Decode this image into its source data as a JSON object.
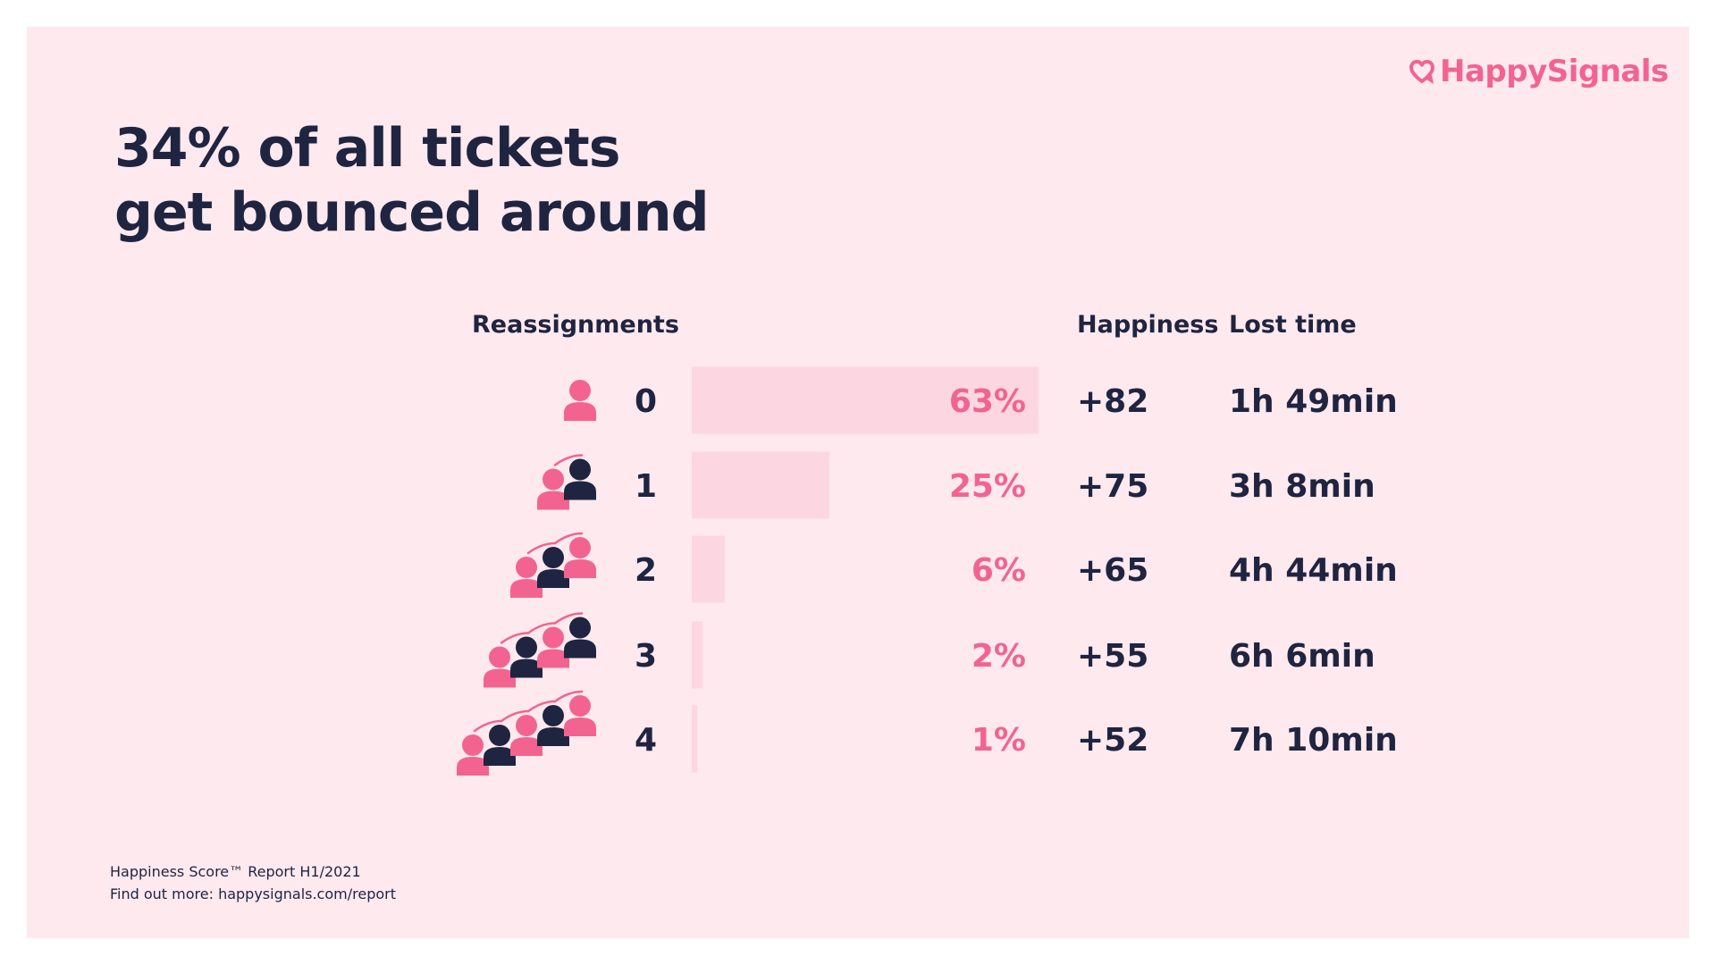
{
  "brand": {
    "name": "HappySignals",
    "color": "#f2648f"
  },
  "title": {
    "line1": "34% of all tickets",
    "line2": "get bounced around"
  },
  "headers": {
    "reassignments": "Reassignments",
    "happiness": "Happiness",
    "lost_time": "Lost time"
  },
  "chart_data": {
    "type": "bar",
    "orientation": "horizontal",
    "title": "34% of all tickets get bounced around",
    "categories": [
      "0",
      "1",
      "2",
      "3",
      "4"
    ],
    "values": [
      63,
      25,
      6,
      2,
      1
    ],
    "value_labels": [
      "63%",
      "25%",
      "6%",
      "2%",
      "1%"
    ],
    "unit": "%",
    "xlim": [
      0,
      63
    ],
    "happiness": [
      "+82",
      "+75",
      "+65",
      "+55",
      "+52"
    ],
    "lost_time": [
      "1h 49min",
      "3h 8min",
      "4h 44min",
      "6h 6min",
      "7h 10min"
    ],
    "colors": {
      "bar": "#fcd7e1",
      "label": "#f2648f",
      "person_pink": "#f2648f",
      "person_navy": "#1f2440"
    }
  },
  "footer": {
    "line1": "Happiness Score™ Report H1/2021",
    "line2": "Find out more: happysignals.com/report"
  }
}
